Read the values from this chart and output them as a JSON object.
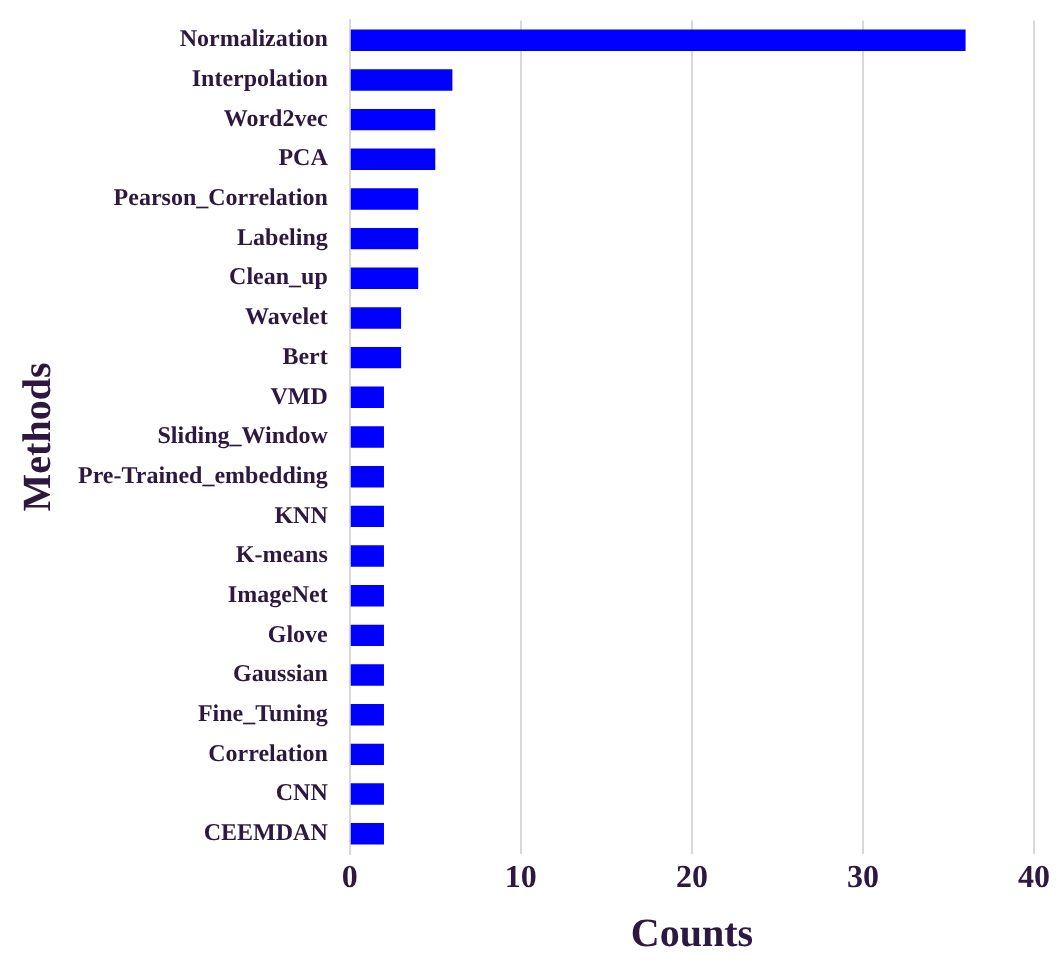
{
  "chart_data": {
    "type": "bar",
    "orientation": "horizontal",
    "xlabel": "Counts",
    "ylabel": "Methods",
    "categories": [
      "Normalization",
      "Interpolation",
      "Word2vec",
      "PCA",
      "Pearson_Correlation",
      "Labeling",
      "Clean_up",
      "Wavelet",
      "Bert",
      "VMD",
      "Sliding_Window",
      "Pre-Trained_embedding",
      "KNN",
      "K-means",
      "ImageNet",
      "Glove",
      "Gaussian",
      "Fine_Tuning",
      "Correlation",
      "CNN",
      "CEEMDAN"
    ],
    "values": [
      36,
      6,
      5,
      5,
      4,
      4,
      4,
      3,
      3,
      2,
      2,
      2,
      2,
      2,
      2,
      2,
      2,
      2,
      2,
      2,
      2
    ],
    "color": "#0000ff",
    "xlim": [
      0,
      40
    ],
    "xticks": [
      0,
      10,
      20,
      30,
      40
    ],
    "grid": "x",
    "legend": false
  }
}
